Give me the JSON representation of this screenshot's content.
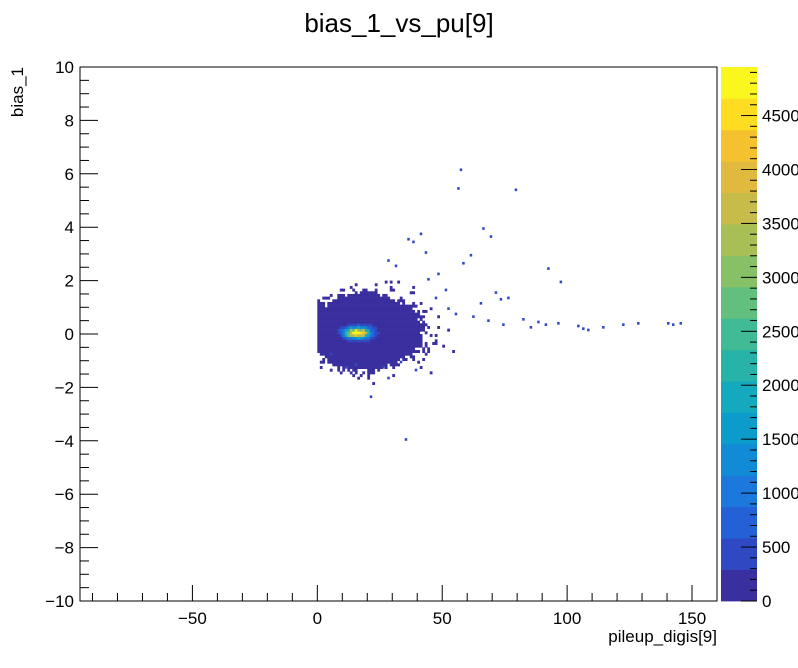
{
  "chart_data": {
    "type": "heatmap",
    "title": "bias_1_vs_pu[9]",
    "xlabel": "pileup_digis[9]",
    "ylabel": "bias_1",
    "xlim": [
      -95,
      160
    ],
    "ylim": [
      -10,
      10
    ],
    "x_ticks": [
      -50,
      0,
      50,
      100,
      150
    ],
    "y_ticks": [
      -10,
      -8,
      -6,
      -4,
      -2,
      0,
      2,
      4,
      6,
      8,
      10
    ],
    "z_range": [
      0,
      4950
    ],
    "z_ticks": [
      0,
      500,
      1000,
      1500,
      2000,
      2500,
      3000,
      3500,
      4000,
      4500
    ],
    "z_tick_labels": [
      "0",
      "500",
      "1000",
      "1500",
      "2000",
      "2500",
      "3000",
      "3500",
      "4000",
      "4500"
    ],
    "grid": false,
    "core": {
      "x": 16,
      "y": 0.05,
      "sigma_x": 3.2,
      "sigma_y": 0.13,
      "peak": 4900
    },
    "halo": {
      "x": 19,
      "y": 0.1,
      "sigma_x": 9,
      "sigma_y": 0.55,
      "peak": 220
    },
    "outliers": [
      [
        57,
        6.1
      ],
      [
        56,
        5.4
      ],
      [
        79,
        5.35
      ],
      [
        66,
        3.9
      ],
      [
        69,
        3.6
      ],
      [
        41,
        3.7
      ],
      [
        36,
        3.5
      ],
      [
        38,
        3.4
      ],
      [
        58,
        2.6
      ],
      [
        61,
        2.9
      ],
      [
        92,
        2.4
      ],
      [
        97,
        1.9
      ],
      [
        71,
        1.5
      ],
      [
        76,
        1.3
      ],
      [
        73,
        1.25
      ],
      [
        65,
        1.1
      ],
      [
        82,
        0.5
      ],
      [
        88,
        0.4
      ],
      [
        91,
        0.3
      ],
      [
        96,
        0.35
      ],
      [
        104,
        0.25
      ],
      [
        108,
        0.1
      ],
      [
        114,
        0.2
      ],
      [
        122,
        0.3
      ],
      [
        128,
        0.35
      ],
      [
        140,
        0.35
      ],
      [
        145,
        0.35
      ],
      [
        142,
        0.3
      ],
      [
        106,
        0.15
      ],
      [
        85,
        0.2
      ],
      [
        35,
        -4.0
      ],
      [
        21,
        -2.4
      ],
      [
        28,
        -1.7
      ],
      [
        39,
        -1.4
      ],
      [
        11,
        -1.3
      ],
      [
        31,
        2.5
      ],
      [
        28,
        2.7
      ],
      [
        44,
        2.0
      ],
      [
        47,
        1.3
      ],
      [
        52,
        0.9
      ],
      [
        55,
        0.7
      ],
      [
        62,
        0.6
      ],
      [
        68,
        0.45
      ],
      [
        74,
        0.3
      ],
      [
        33,
        -1.1
      ],
      [
        26,
        -1.3
      ],
      [
        15,
        -1.2
      ],
      [
        5,
        -0.8
      ],
      [
        48,
        2.2
      ],
      [
        51,
        1.6
      ],
      [
        43,
        3.0
      ]
    ],
    "colorscale": [
      "#3a2f9e",
      "#2f49c2",
      "#2460d6",
      "#1c78dc",
      "#128bd6",
      "#0c9ccc",
      "#14a9bd",
      "#28b3a8",
      "#40bb95",
      "#62bf7e",
      "#86c167",
      "#a8bf56",
      "#c7bb49",
      "#e0b93e",
      "#f6c12f",
      "#fddc22",
      "#f9f71d"
    ]
  }
}
